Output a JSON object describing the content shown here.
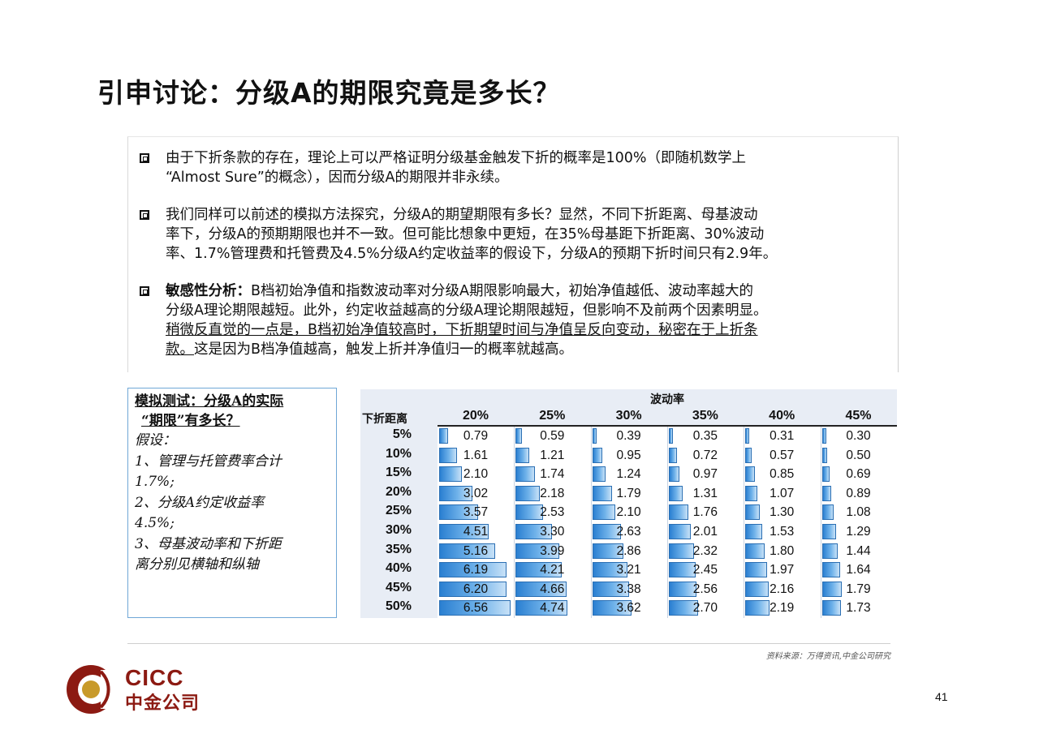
{
  "title": "引申讨论：分级A的期限究竟是多长？",
  "bullets": [
    {
      "lines": [
        "由于下折条款的存在，理论上可以严格证明分级基金触发下折的概率是100%（即随机数学上",
        "“Almost Sure”的概念），因而分级A的期限并非永续。"
      ]
    },
    {
      "lines": [
        "我们同样可以前述的模拟方法探究，分级A的期望期限有多长？显然，不同下折距离、母基波动",
        "率下，分级A的预期期限也并不一致。但可能比想象中更短，在35%母基距下折距离、30%波动",
        "率、1.7%管理费和托管费及4.5%分级A约定收益率的假设下，分级A的预期下折时间只有2.9年。"
      ]
    },
    {
      "lead": "敏感性分析：",
      "line1_rest": "B档初始净值和指数波动率对分级A期限影响最大，初始净值越低、波动率越大的",
      "line2": "分级A理论期限越短。此外，约定收益越高的分级A理论期限越短，但影响不及前两个因素明显。",
      "line3_ul": "稍微反直觉的一点是，B档初始净值较高时，下折期望时间与净值呈反向变动，秘密在于上折条",
      "line4_ul": "款。",
      "line4_rest": "这是因为B档净值越高，触发上折并净值归一的概率就越高。"
    }
  ],
  "sim": {
    "head1": "模拟测试：分级A的实际",
    "head2": "“期限”有多长？",
    "lines": [
      "假设：",
      "1、管理与托管费率合计",
      "1.7%;",
      "2、分级A约定收益率",
      "4.5%;",
      "3、母基波动率和下折距",
      "离分别见横轴和纵轴"
    ]
  },
  "chart_data": {
    "type": "table",
    "title": "波动率",
    "row_axis_label": "下折距离",
    "columns": [
      "20%",
      "25%",
      "30%",
      "35%",
      "40%",
      "45%"
    ],
    "rows": [
      "5%",
      "10%",
      "15%",
      "20%",
      "25%",
      "30%",
      "35%",
      "40%",
      "45%",
      "50%"
    ],
    "values": [
      [
        "0.79",
        "0.59",
        "0.39",
        "0.35",
        "0.31",
        "0.30"
      ],
      [
        "1.61",
        "1.21",
        "0.95",
        "0.72",
        "0.57",
        "0.50"
      ],
      [
        "2.10",
        "1.74",
        "1.24",
        "0.97",
        "0.85",
        "0.69"
      ],
      [
        "3.02",
        "2.18",
        "1.79",
        "1.31",
        "1.07",
        "0.89"
      ],
      [
        "3.57",
        "2.53",
        "2.10",
        "1.76",
        "1.30",
        "1.08"
      ],
      [
        "4.51",
        "3.30",
        "2.63",
        "2.01",
        "1.53",
        "1.29"
      ],
      [
        "5.16",
        "3.99",
        "2.86",
        "2.32",
        "1.80",
        "1.44"
      ],
      [
        "6.19",
        "4.21",
        "3.21",
        "2.45",
        "1.97",
        "1.64"
      ],
      [
        "6.20",
        "4.66",
        "3.38",
        "2.56",
        "2.16",
        "1.79"
      ],
      [
        "6.56",
        "4.74",
        "3.62",
        "2.70",
        "2.19",
        "1.73"
      ]
    ],
    "bar_max": 6.56,
    "bar_color": "#2a7fd1"
  },
  "footer": {
    "source": "资料来源：万得资讯,中金公司研究",
    "logo_en": "CICC",
    "logo_cn": "中金公司",
    "page": "41"
  }
}
